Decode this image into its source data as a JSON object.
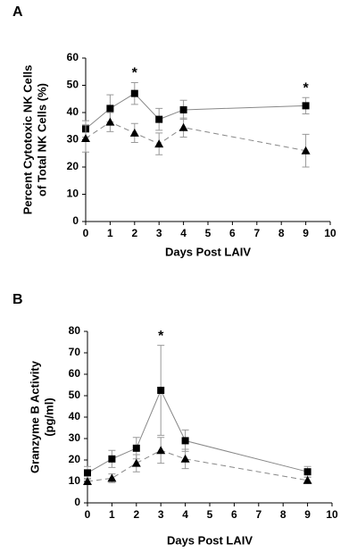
{
  "chart_data": [
    {
      "type": "line",
      "panel": "A",
      "ylabel": [
        "Percent Cytotoxic NK Cells",
        "of Total NK Cells (%)"
      ],
      "xlabel": "Days Post LAIV",
      "x": [
        0,
        1,
        2,
        3,
        4,
        9
      ],
      "series": [
        {
          "color": "#000000",
          "line_color": "#888888",
          "marker": "square",
          "dashed": false,
          "values": [
            34,
            41.5,
            47,
            37.5,
            41,
            42.5
          ],
          "errors": [
            3,
            5,
            4,
            4,
            3.5,
            3
          ]
        },
        {
          "color": "#000000",
          "line_color": "#888888",
          "marker": "triangle",
          "dashed": true,
          "values": [
            30.5,
            36.5,
            32.5,
            28.5,
            34.5,
            26
          ],
          "errors": [
            5,
            3.5,
            3.5,
            4,
            3.5,
            6
          ]
        }
      ],
      "annotations": [
        {
          "text": "*",
          "x": 2
        },
        {
          "text": "*",
          "x": 9
        }
      ],
      "xlim": [
        0,
        10
      ],
      "xticks": [
        0,
        1,
        2,
        3,
        4,
        5,
        6,
        7,
        8,
        9,
        10
      ],
      "ylim": [
        0,
        60
      ],
      "yticks": [
        0,
        10,
        20,
        30,
        40,
        50,
        60
      ]
    },
    {
      "type": "line",
      "panel": "B",
      "ylabel": [
        "Granzyme B Activity",
        "(pg/ml)"
      ],
      "xlabel": "Days Post LAIV",
      "x": [
        0,
        1,
        2,
        3,
        4,
        9
      ],
      "series": [
        {
          "color": "#000000",
          "line_color": "#888888",
          "marker": "square",
          "dashed": false,
          "values": [
            14,
            20.5,
            25.5,
            52.5,
            29,
            14.5
          ],
          "errors": [
            3,
            4,
            5,
            21,
            5,
            2.5
          ]
        },
        {
          "color": "#000000",
          "line_color": "#888888",
          "marker": "triangle",
          "dashed": true,
          "values": [
            10,
            11.5,
            18.5,
            24.5,
            20.5,
            10.5
          ],
          "errors": [
            1.5,
            2,
            4,
            6,
            4.5,
            1.5
          ]
        }
      ],
      "annotations": [
        {
          "text": "*",
          "x": 3
        }
      ],
      "xlim": [
        0,
        10
      ],
      "xticks": [
        0,
        1,
        2,
        3,
        4,
        5,
        6,
        7,
        8,
        9,
        10
      ],
      "ylim": [
        0,
        80
      ],
      "yticks": [
        0,
        10,
        20,
        30,
        40,
        50,
        60,
        70,
        80
      ]
    }
  ]
}
